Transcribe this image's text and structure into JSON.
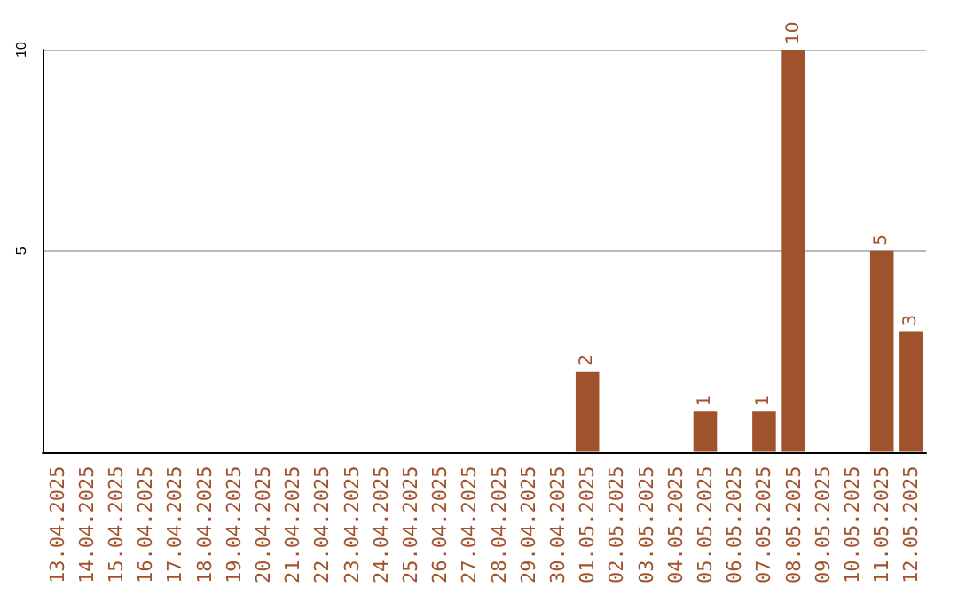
{
  "chart_data": {
    "type": "bar",
    "categories": [
      "13.04.2025",
      "14.04.2025",
      "15.04.2025",
      "16.04.2025",
      "17.04.2025",
      "18.04.2025",
      "19.04.2025",
      "20.04.2025",
      "21.04.2025",
      "22.04.2025",
      "23.04.2025",
      "24.04.2025",
      "25.04.2025",
      "26.04.2025",
      "27.04.2025",
      "28.04.2025",
      "29.04.2025",
      "30.04.2025",
      "01.05.2025",
      "02.05.2025",
      "03.05.2025",
      "04.05.2025",
      "05.05.2025",
      "06.05.2025",
      "07.05.2025",
      "08.05.2025",
      "09.05.2025",
      "10.05.2025",
      "11.05.2025",
      "12.05.2025"
    ],
    "values": [
      0,
      0,
      0,
      0,
      0,
      0,
      0,
      0,
      0,
      0,
      0,
      0,
      0,
      0,
      0,
      0,
      0,
      0,
      2,
      0,
      0,
      0,
      1,
      0,
      1,
      10,
      0,
      0,
      5,
      3
    ],
    "value_labels": [
      null,
      null,
      null,
      null,
      null,
      null,
      null,
      null,
      null,
      null,
      null,
      null,
      null,
      null,
      null,
      null,
      null,
      null,
      "2",
      null,
      null,
      null,
      "1",
      null,
      "1",
      "10",
      null,
      null,
      "5",
      "3"
    ],
    "color": "#a0522d",
    "ylim": [
      0,
      10
    ],
    "yticks": [
      5,
      10
    ],
    "grid": "y"
  }
}
